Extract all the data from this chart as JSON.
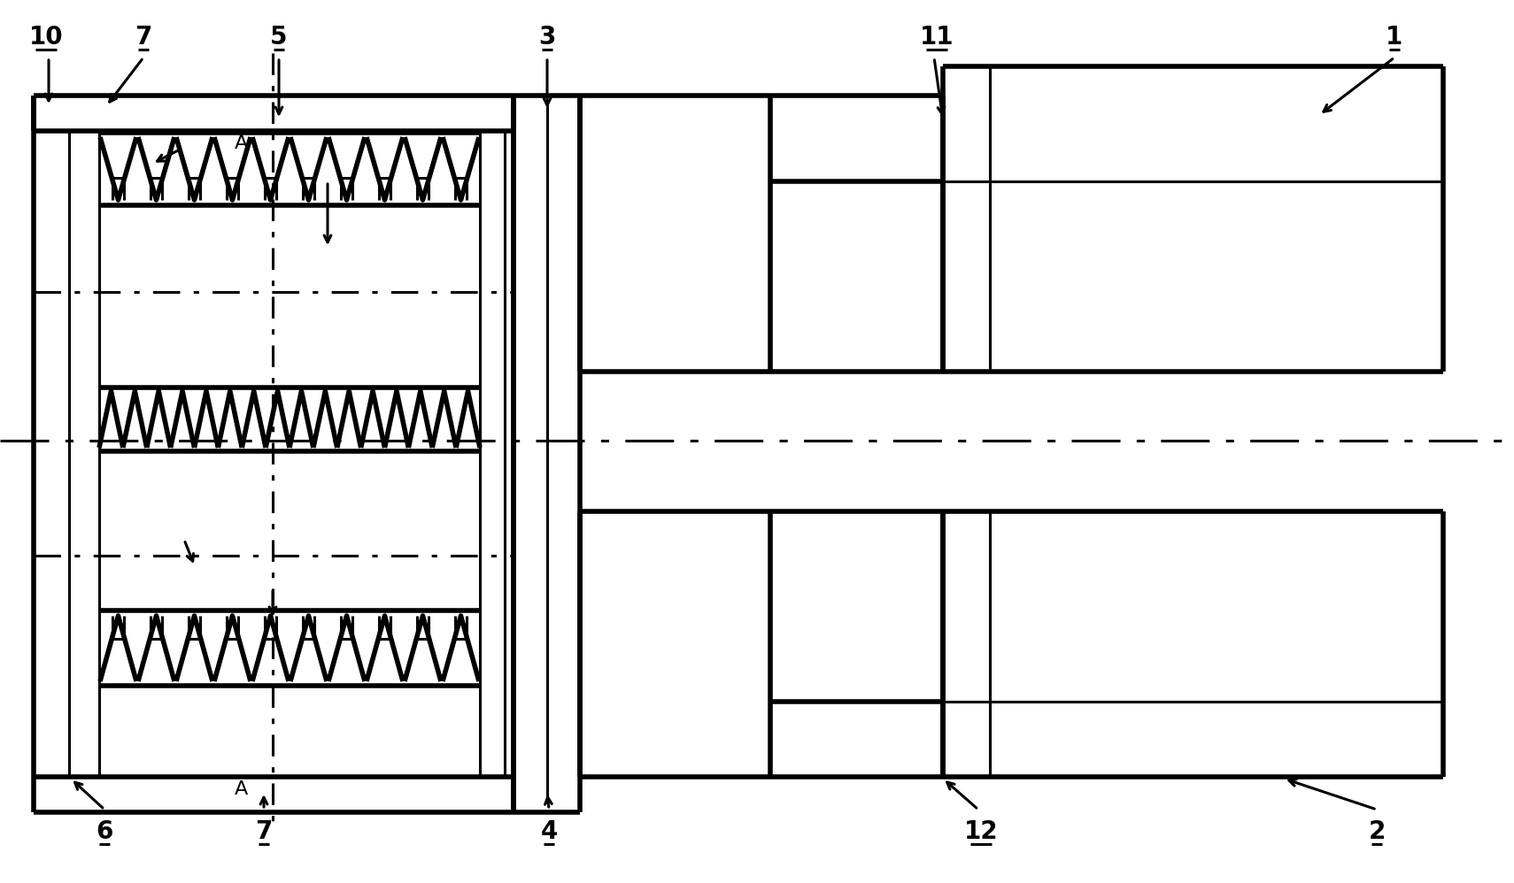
{
  "bg_color": "#ffffff",
  "line_color": "#000000",
  "lw": 2.2,
  "lw_thick": 4.0,
  "fig_width": 17.1,
  "fig_height": 9.98,
  "dpi": 100
}
